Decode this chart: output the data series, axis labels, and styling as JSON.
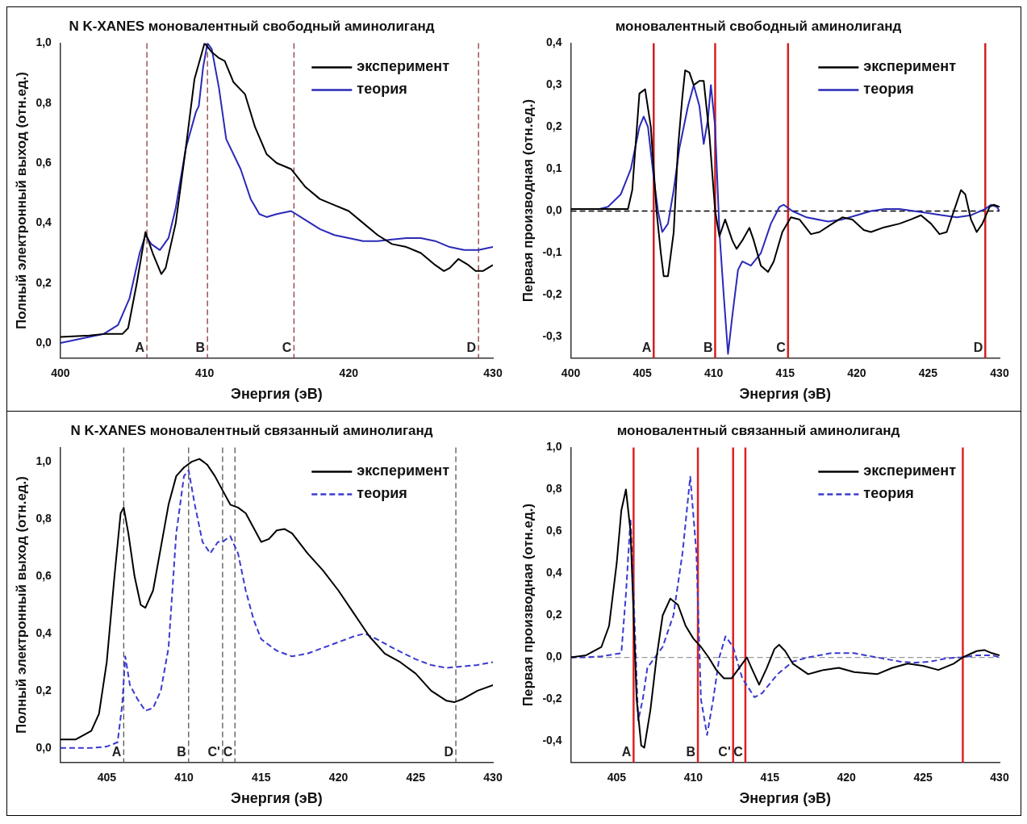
{
  "chart_data": [
    {
      "type": "line",
      "title": "N K-XANES моновалентный свободный аминолиганд",
      "xlabel": "Энергия (эВ)",
      "ylabel": "Полный электронный выход (отн.ед.)",
      "xlim": [
        400,
        430
      ],
      "ylim": [
        -0.05,
        1.0
      ],
      "xticks": [
        400,
        410,
        420,
        430
      ],
      "yticks": [
        {
          "value": 0,
          "label": "0,0"
        },
        {
          "value": 0.2,
          "label": "0,2"
        },
        {
          "value": 0.4,
          "label": "0,4"
        },
        {
          "value": 0.6,
          "label": "0,6"
        },
        {
          "value": 0.8,
          "label": "0,8"
        },
        {
          "value": 1.0,
          "label": "1,0"
        }
      ],
      "legend": "top right",
      "line_style": "solid",
      "series": [
        {
          "name": "эксперимент",
          "color": "#000000",
          "x": [
            400,
            402,
            403,
            404.3,
            404.7,
            405.3,
            405.9,
            406.4,
            407,
            407.3,
            408,
            408.7,
            409.3,
            410,
            410.5,
            411,
            411.4,
            412,
            412.8,
            413.5,
            414.3,
            415,
            416,
            417,
            418,
            419,
            420,
            421,
            422,
            423,
            424,
            425,
            426,
            426.6,
            427,
            427.6,
            428.3,
            428.8,
            429.3,
            430
          ],
          "values": [
            0.02,
            0.025,
            0.03,
            0.03,
            0.05,
            0.2,
            0.37,
            0.3,
            0.23,
            0.25,
            0.4,
            0.65,
            0.88,
            1.0,
            0.97,
            0.95,
            0.94,
            0.87,
            0.83,
            0.72,
            0.63,
            0.6,
            0.58,
            0.52,
            0.48,
            0.46,
            0.44,
            0.4,
            0.36,
            0.33,
            0.32,
            0.3,
            0.26,
            0.24,
            0.25,
            0.28,
            0.26,
            0.24,
            0.24,
            0.26
          ]
        },
        {
          "name": "теория",
          "color": "#2a2ab8",
          "x": [
            400,
            402,
            403,
            404,
            404.8,
            405.5,
            405.9,
            406.3,
            406.9,
            407.5,
            408,
            408.7,
            409.4,
            409.6,
            409.9,
            410.2,
            410.5,
            411,
            411.5,
            412.5,
            413.2,
            413.8,
            414.3,
            415,
            416,
            417,
            418,
            419,
            420,
            421,
            422,
            423,
            424,
            425,
            426,
            427,
            428,
            429,
            430
          ],
          "values": [
            0.0,
            0.02,
            0.03,
            0.06,
            0.15,
            0.3,
            0.36,
            0.33,
            0.31,
            0.35,
            0.45,
            0.65,
            0.77,
            0.79,
            0.92,
            1.0,
            0.98,
            0.85,
            0.68,
            0.58,
            0.48,
            0.43,
            0.42,
            0.43,
            0.44,
            0.41,
            0.38,
            0.36,
            0.35,
            0.34,
            0.34,
            0.345,
            0.35,
            0.35,
            0.34,
            0.32,
            0.31,
            0.31,
            0.32
          ]
        }
      ],
      "ref_lines": [
        {
          "axis": "x",
          "value": 406,
          "label": "A",
          "color": "#8b3a3a",
          "line_style": "dashed"
        },
        {
          "axis": "x",
          "value": 410.2,
          "label": "B",
          "color": "#8b3a3a",
          "line_style": "dashed"
        },
        {
          "axis": "x",
          "value": 416.2,
          "label": "C",
          "color": "#8b3a3a",
          "line_style": "dashed"
        },
        {
          "axis": "x",
          "value": 429,
          "label": "D",
          "color": "#8b3a3a",
          "line_style": "dashed"
        }
      ]
    },
    {
      "type": "line",
      "title": "моновалентный свободный аминолиганд",
      "xlabel": "Энергия (эВ)",
      "ylabel": "Первая производная (отн.ед.)",
      "xlim": [
        400,
        430
      ],
      "ylim": [
        -0.35,
        0.4
      ],
      "xticks": [
        400,
        405,
        410,
        415,
        420,
        425,
        430
      ],
      "yticks": [
        {
          "value": -0.3,
          "label": "-0,3"
        },
        {
          "value": -0.2,
          "label": "-0,2"
        },
        {
          "value": -0.1,
          "label": "-0,1"
        },
        {
          "value": 0,
          "label": "0,0"
        },
        {
          "value": 0.1,
          "label": "0,1"
        },
        {
          "value": 0.2,
          "label": "0,2"
        },
        {
          "value": 0.3,
          "label": "0,3"
        },
        {
          "value": 0.4,
          "label": "0,4"
        }
      ],
      "legend": "top right",
      "line_style": "solid",
      "series": [
        {
          "name": "эксперимент",
          "color": "#000000",
          "x": [
            400,
            404,
            404.3,
            404.8,
            405.2,
            405.6,
            406,
            406.3,
            406.5,
            406.8,
            407.2,
            407.5,
            407.8,
            408,
            408.3,
            408.6,
            409,
            409.3,
            409.7,
            410.1,
            410.4,
            410.8,
            411.3,
            411.6,
            412,
            412.5,
            412.8,
            413.3,
            413.8,
            414.2,
            414.8,
            415.4,
            416,
            416.8,
            417.4,
            418.3,
            419,
            419.7,
            420.5,
            421,
            421.8,
            423,
            423.8,
            424.5,
            425.2,
            425.8,
            426.3,
            426.8,
            427.3,
            427.6,
            428,
            428.4,
            428.8,
            429.3,
            429.6,
            430
          ],
          "values": [
            0.005,
            0.005,
            0.05,
            0.28,
            0.29,
            0.2,
            0.0,
            -0.1,
            -0.155,
            -0.155,
            -0.05,
            0.15,
            0.27,
            0.335,
            0.33,
            0.3,
            0.31,
            0.31,
            0.18,
            0.0,
            -0.06,
            -0.02,
            -0.07,
            -0.09,
            -0.07,
            -0.04,
            -0.07,
            -0.13,
            -0.145,
            -0.12,
            -0.05,
            -0.015,
            -0.02,
            -0.055,
            -0.05,
            -0.03,
            -0.015,
            -0.02,
            -0.045,
            -0.05,
            -0.04,
            -0.03,
            -0.02,
            -0.01,
            -0.03,
            -0.055,
            -0.05,
            0.0,
            0.05,
            0.04,
            -0.02,
            -0.05,
            -0.03,
            0.01,
            0.015,
            0.01
          ]
        },
        {
          "name": "теория",
          "color": "#2a2ab8",
          "x": [
            400,
            402,
            402.6,
            403.5,
            404.2,
            404.8,
            405.1,
            405.4,
            405.8,
            406.1,
            406.4,
            406.8,
            407.2,
            407.6,
            408.2,
            408.6,
            409,
            409.3,
            409.6,
            409.8,
            410.1,
            410.4,
            410.7,
            411,
            411.3,
            411.7,
            412,
            412.6,
            413.3,
            414,
            414.6,
            414.9,
            415.5,
            416.5,
            418,
            419,
            420,
            421,
            422,
            423,
            424,
            425,
            426,
            427,
            428,
            429,
            429.4,
            429.8,
            430
          ],
          "values": [
            0.005,
            0.005,
            0.01,
            0.04,
            0.1,
            0.2,
            0.225,
            0.2,
            0.08,
            0.0,
            -0.05,
            -0.03,
            0.05,
            0.15,
            0.25,
            0.3,
            0.25,
            0.16,
            0.22,
            0.3,
            0.2,
            -0.05,
            -0.2,
            -0.34,
            -0.25,
            -0.14,
            -0.12,
            -0.13,
            -0.1,
            -0.03,
            0.01,
            0.015,
            0.0,
            -0.015,
            -0.025,
            -0.02,
            -0.01,
            0.0,
            0.005,
            0.005,
            0.0,
            -0.005,
            -0.01,
            -0.015,
            -0.01,
            0.005,
            0.015,
            0.01,
            0.0
          ]
        }
      ],
      "ref_lines": [
        {
          "axis": "y",
          "value": 0,
          "label": null,
          "color": "#000000",
          "line_style": "dashed"
        },
        {
          "axis": "x",
          "value": 405.8,
          "label": "A",
          "color": "#d42020",
          "line_style": "solid"
        },
        {
          "axis": "x",
          "value": 410.1,
          "label": "B",
          "color": "#d42020",
          "line_style": "solid"
        },
        {
          "axis": "x",
          "value": 415.2,
          "label": "C",
          "color": "#d42020",
          "line_style": "solid"
        },
        {
          "axis": "x",
          "value": 429,
          "label": "D",
          "color": "#d42020",
          "line_style": "solid"
        }
      ]
    },
    {
      "type": "line",
      "title": "N K-XANES моновалентный связанный аминолиганд",
      "xlabel": "Энергия (эВ)",
      "ylabel": "Полный электронный выход (отн.ед.)",
      "xlim": [
        402,
        430
      ],
      "ylim": [
        -0.05,
        1.05
      ],
      "xticks": [
        405,
        410,
        415,
        420,
        425,
        430
      ],
      "yticks": [
        {
          "value": 0,
          "label": "0,0"
        },
        {
          "value": 0.2,
          "label": "0,2"
        },
        {
          "value": 0.4,
          "label": "0,4"
        },
        {
          "value": 0.6,
          "label": "0,6"
        },
        {
          "value": 0.8,
          "label": "0,8"
        },
        {
          "value": 1.0,
          "label": "1,0"
        }
      ],
      "legend": "top right",
      "series": [
        {
          "name": "эксперимент",
          "color": "#000000",
          "line_style": "solid",
          "x": [
            402,
            403,
            404,
            404.5,
            405,
            405.5,
            405.9,
            406.1,
            406.4,
            406.8,
            407.2,
            407.5,
            408,
            408.5,
            409,
            409.5,
            410,
            410.5,
            411,
            411.5,
            412,
            412.5,
            413,
            413.5,
            414,
            414.5,
            415,
            415.5,
            416,
            416.5,
            417,
            418,
            419,
            420,
            421,
            422,
            423,
            424,
            425,
            426,
            427,
            427.5,
            428,
            429,
            430
          ],
          "values": [
            0.03,
            0.03,
            0.06,
            0.12,
            0.3,
            0.6,
            0.82,
            0.84,
            0.75,
            0.6,
            0.5,
            0.49,
            0.55,
            0.7,
            0.85,
            0.95,
            0.98,
            1.0,
            1.01,
            0.99,
            0.95,
            0.9,
            0.85,
            0.84,
            0.82,
            0.77,
            0.72,
            0.73,
            0.76,
            0.765,
            0.75,
            0.68,
            0.62,
            0.55,
            0.47,
            0.39,
            0.33,
            0.3,
            0.26,
            0.2,
            0.165,
            0.16,
            0.17,
            0.2,
            0.22
          ]
        },
        {
          "name": "теория",
          "color": "#3a3ad0",
          "line_style": "dashed",
          "x": [
            402,
            404,
            405,
            405.7,
            406,
            406.2,
            406.5,
            407,
            407.5,
            408,
            408.5,
            409,
            409.5,
            410,
            410.3,
            410.7,
            411.2,
            411.7,
            412.2,
            412.5,
            413,
            413.5,
            414,
            414.5,
            415,
            416,
            417,
            418,
            419,
            420,
            421,
            421.7,
            422.5,
            423.5,
            425,
            426,
            427,
            428,
            429,
            430
          ],
          "values": [
            0.0,
            0.0,
            0.005,
            0.02,
            0.15,
            0.32,
            0.22,
            0.17,
            0.13,
            0.14,
            0.2,
            0.35,
            0.75,
            0.95,
            0.97,
            0.85,
            0.72,
            0.68,
            0.72,
            0.72,
            0.74,
            0.68,
            0.55,
            0.45,
            0.38,
            0.34,
            0.32,
            0.33,
            0.35,
            0.37,
            0.39,
            0.4,
            0.38,
            0.35,
            0.31,
            0.29,
            0.28,
            0.285,
            0.29,
            0.3
          ]
        }
      ],
      "ref_lines": [
        {
          "axis": "x",
          "value": 406.1,
          "label": "A",
          "color": "#555555",
          "line_style": "dashed"
        },
        {
          "axis": "x",
          "value": 410.3,
          "label": "B",
          "color": "#555555",
          "line_style": "dashed"
        },
        {
          "axis": "x",
          "value": 412.5,
          "label": "C'",
          "color": "#555555",
          "line_style": "dashed"
        },
        {
          "axis": "x",
          "value": 413.3,
          "label": "C",
          "color": "#555555",
          "line_style": "dashed"
        },
        {
          "axis": "x",
          "value": 427.6,
          "label": "D",
          "color": "#555555",
          "line_style": "dashed"
        }
      ]
    },
    {
      "type": "line",
      "title": "моновалентный связанный аминолиганд",
      "xlabel": "Энергия (эВ)",
      "ylabel": "Первая производная (отн.ед.)",
      "xlim": [
        402,
        430
      ],
      "ylim": [
        -0.5,
        1.0
      ],
      "xticks": [
        405,
        410,
        415,
        420,
        425,
        430
      ],
      "yticks": [
        {
          "value": -0.4,
          "label": "-0,4"
        },
        {
          "value": -0.2,
          "label": "-0,2"
        },
        {
          "value": 0,
          "label": "0,0"
        },
        {
          "value": 0.2,
          "label": "0,2"
        },
        {
          "value": 0.4,
          "label": "0,4"
        },
        {
          "value": 0.6,
          "label": "0,6"
        },
        {
          "value": 0.8,
          "label": "0,8"
        },
        {
          "value": 1.0,
          "label": "1,0"
        }
      ],
      "legend": "top right",
      "series": [
        {
          "name": "эксперимент",
          "color": "#000000",
          "line_style": "solid",
          "x": [
            402,
            403,
            404,
            404.5,
            405,
            405.3,
            405.6,
            405.9,
            406.1,
            406.3,
            406.6,
            406.8,
            407.2,
            407.6,
            408,
            408.5,
            409,
            409.5,
            410,
            410.5,
            411,
            411.5,
            412,
            412.5,
            413,
            413.5,
            413.8,
            414.3,
            414.8,
            415.3,
            415.6,
            416,
            416.5,
            417.5,
            418.5,
            419.5,
            420.5,
            422,
            423,
            424,
            425,
            426,
            427,
            427.6,
            428.5,
            429,
            429.5,
            430
          ],
          "values": [
            0.0,
            0.01,
            0.05,
            0.15,
            0.45,
            0.7,
            0.8,
            0.6,
            0.2,
            -0.2,
            -0.42,
            -0.43,
            -0.25,
            0.0,
            0.2,
            0.28,
            0.25,
            0.15,
            0.09,
            0.05,
            0.0,
            -0.06,
            -0.1,
            -0.1,
            -0.05,
            0.0,
            -0.05,
            -0.13,
            -0.05,
            0.04,
            0.06,
            0.03,
            -0.03,
            -0.08,
            -0.06,
            -0.05,
            -0.07,
            -0.08,
            -0.05,
            -0.03,
            -0.04,
            -0.06,
            -0.03,
            0.0,
            0.03,
            0.035,
            0.02,
            0.01
          ]
        },
        {
          "name": "теория",
          "color": "#3a3ad0",
          "line_style": "dashed",
          "x": [
            402,
            403,
            404,
            405.3,
            405.6,
            405.9,
            406.1,
            406.4,
            406.7,
            407,
            407.5,
            408,
            408.7,
            409.3,
            409.8,
            410.2,
            410.5,
            410.9,
            411.3,
            411.7,
            412.1,
            412.6,
            413.2,
            414,
            414.5,
            415.5,
            416.5,
            417.5,
            419,
            420.5,
            422,
            423.5,
            424.5,
            425.5,
            426.5,
            427.5,
            428.5,
            429.5,
            430
          ],
          "values": [
            0.0,
            0.0,
            0.005,
            0.02,
            0.3,
            0.66,
            0.3,
            -0.3,
            -0.2,
            -0.05,
            0.0,
            0.05,
            0.2,
            0.5,
            0.86,
            0.5,
            -0.2,
            -0.37,
            -0.2,
            0.0,
            0.1,
            0.05,
            -0.1,
            -0.19,
            -0.17,
            -0.08,
            -0.02,
            0.0,
            0.02,
            0.02,
            0.0,
            -0.02,
            -0.025,
            -0.02,
            -0.005,
            0.0,
            0.01,
            0.01,
            0.0
          ]
        }
      ],
      "ref_lines": [
        {
          "axis": "y",
          "value": 0,
          "label": null,
          "color": "#999999",
          "line_style": "dashed"
        },
        {
          "axis": "x",
          "value": 406.1,
          "label": "A",
          "color": "#e02020",
          "line_style": "solid"
        },
        {
          "axis": "x",
          "value": 410.3,
          "label": "B",
          "color": "#e02020",
          "line_style": "solid"
        },
        {
          "axis": "x",
          "value": 412.6,
          "label": "C'",
          "color": "#e02020",
          "line_style": "solid"
        },
        {
          "axis": "x",
          "value": 413.4,
          "label": "C",
          "color": "#e02020",
          "line_style": "solid"
        },
        {
          "axis": "x",
          "value": 427.6,
          "label": null,
          "color": "#e02020",
          "line_style": "solid"
        }
      ]
    }
  ]
}
